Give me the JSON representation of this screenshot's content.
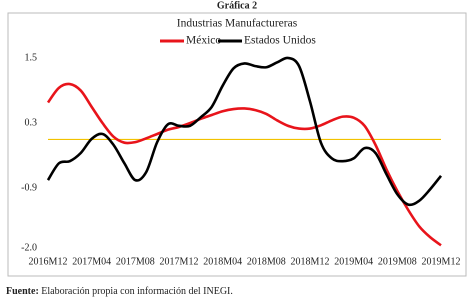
{
  "header": "Gráfica 2",
  "chart_data": {
    "type": "line",
    "title": "Industrias Manufactureras",
    "categories": [
      "2016M12",
      null,
      null,
      null,
      "2017M04",
      null,
      null,
      null,
      "2017M08",
      null,
      null,
      null,
      "2017M12",
      null,
      null,
      null,
      "2018M04",
      null,
      null,
      null,
      "2018M08",
      null,
      null,
      null,
      "2018M12",
      null,
      null,
      null,
      "2019M04",
      null,
      null,
      null,
      "2019M08",
      null,
      null,
      null,
      "2019M12"
    ],
    "series": [
      {
        "name": "México",
        "color": "#e8141b",
        "values": [
          0.68,
          0.95,
          1.02,
          0.9,
          0.6,
          0.3,
          0.05,
          -0.06,
          -0.05,
          0.02,
          0.1,
          0.18,
          0.23,
          0.3,
          0.38,
          0.45,
          0.52,
          0.56,
          0.57,
          0.54,
          0.47,
          0.35,
          0.25,
          0.2,
          0.2,
          0.26,
          0.35,
          0.42,
          0.4,
          0.25,
          -0.1,
          -0.55,
          -0.95,
          -1.3,
          -1.6,
          -1.8,
          -1.95
        ]
      },
      {
        "name": "Estados Unidos",
        "color": "#000000",
        "values": [
          -0.75,
          -0.44,
          -0.4,
          -0.25,
          0.01,
          0.1,
          -0.1,
          -0.44,
          -0.75,
          -0.6,
          -0.05,
          0.28,
          0.25,
          0.25,
          0.41,
          0.6,
          0.99,
          1.31,
          1.4,
          1.35,
          1.33,
          1.42,
          1.5,
          1.35,
          0.7,
          -0.06,
          -0.35,
          -0.4,
          -0.35,
          -0.16,
          -0.25,
          -0.64,
          -1.01,
          -1.2,
          -1.13,
          -0.92,
          -0.67
        ]
      }
    ],
    "ylim": [
      -2.0,
      1.5
    ],
    "yticks": [
      1.5,
      0.3,
      -0.9,
      {
        "value": -2.0,
        "label": "-2.0"
      }
    ],
    "reference_line": 0,
    "reference_color": "#f2c200",
    "grid": false
  },
  "source_label": "Fuente:",
  "source_text": "Elaboración propia con información del INEGI."
}
